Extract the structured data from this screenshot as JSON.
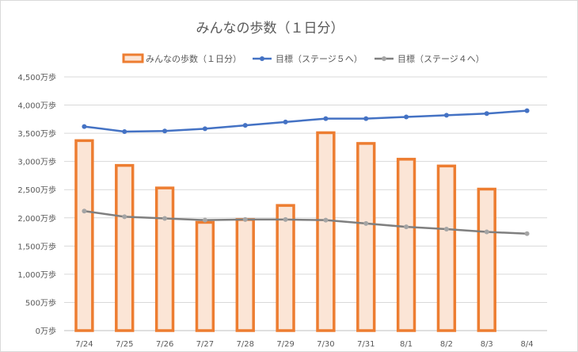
{
  "chart_data": {
    "type": "bar",
    "title": "みんなの歩数（１日分）",
    "categories": [
      "7/24",
      "7/25",
      "7/26",
      "7/27",
      "7/28",
      "7/29",
      "7/30",
      "7/31",
      "8/1",
      "8/2",
      "8/3",
      "8/4"
    ],
    "ylim": [
      0,
      4500
    ],
    "ytick_step": 500,
    "ytick_labels": [
      "0万歩",
      "500万歩",
      "1,000万歩",
      "1,500万歩",
      "2,000万歩",
      "2,500万歩",
      "3,000万歩",
      "3,500万歩",
      "4,000万歩",
      "4,500万歩"
    ],
    "grid": true,
    "legend_position": "top",
    "series": [
      {
        "name": "みんなの歩数（１日分）",
        "kind": "bar",
        "color": "#ED7D31",
        "fill": "#FBE5D6",
        "values": [
          3370,
          2930,
          2530,
          1920,
          1970,
          2220,
          3510,
          3320,
          3040,
          2920,
          2510,
          null
        ]
      },
      {
        "name": "目標（ステージ５へ）",
        "kind": "line",
        "color": "#4472C4",
        "values": [
          3620,
          3530,
          3540,
          3580,
          3640,
          3700,
          3760,
          3760,
          3790,
          3820,
          3850,
          3900
        ]
      },
      {
        "name": "目標（ステージ４へ）",
        "kind": "line",
        "color": "#7F7F7F",
        "marker_color": "#A5A5A5",
        "values": [
          2120,
          2020,
          1990,
          1960,
          1970,
          1970,
          1960,
          1900,
          1840,
          1800,
          1750,
          1720
        ]
      }
    ]
  }
}
